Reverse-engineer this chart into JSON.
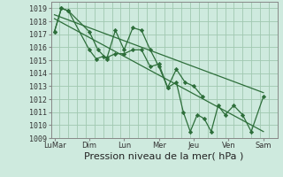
{
  "background_color": "#ceeade",
  "grid_color": "#a0c8b0",
  "line_color": "#2d6e3a",
  "marker_color": "#2d6e3a",
  "xlabel": "Pression niveau de la mer( hPa )",
  "xlabel_fontsize": 8,
  "ylim": [
    1009,
    1019.5
  ],
  "yticks": [
    1009,
    1010,
    1011,
    1012,
    1013,
    1014,
    1015,
    1016,
    1017,
    1018,
    1019
  ],
  "xtick_labels": [
    "LuMar",
    "Dim",
    "Lun",
    "Mer",
    "Jeu",
    "Ven",
    "Sam"
  ],
  "xtick_positions": [
    0,
    2,
    4,
    6,
    8,
    10,
    12
  ],
  "series1_x": [
    0.0,
    0.4,
    0.8,
    2.0,
    2.5,
    3.0,
    3.5,
    4.0,
    4.5,
    5.0,
    5.5,
    6.0,
    6.5,
    7.0,
    7.5,
    8.0,
    8.5
  ],
  "series1_y": [
    1017.2,
    1019.0,
    1018.8,
    1017.2,
    1015.8,
    1015.1,
    1017.3,
    1015.8,
    1017.5,
    1017.3,
    1015.8,
    1014.5,
    1012.9,
    1014.3,
    1013.3,
    1013.0,
    1012.2
  ],
  "series2_x": [
    0.0,
    0.4,
    0.8,
    2.0,
    2.4,
    2.8,
    3.0,
    3.5,
    4.0,
    4.5,
    5.0,
    5.5,
    6.0,
    6.5,
    7.0,
    7.4,
    7.8,
    8.2,
    8.6,
    9.0,
    9.4,
    9.8,
    10.3,
    10.8,
    11.3,
    12.0
  ],
  "series2_y": [
    1017.2,
    1019.0,
    1018.8,
    1015.8,
    1015.1,
    1015.3,
    1015.2,
    1015.5,
    1015.5,
    1015.8,
    1015.8,
    1014.5,
    1014.7,
    1012.9,
    1013.3,
    1011.0,
    1009.5,
    1010.8,
    1010.5,
    1009.5,
    1011.5,
    1010.8,
    1011.5,
    1010.8,
    1009.5,
    1012.2
  ],
  "trend1_x": [
    0.0,
    12.0
  ],
  "trend1_y": [
    1018.5,
    1012.5
  ],
  "trend2_x": [
    0.0,
    12.0
  ],
  "trend2_y": [
    1018.2,
    1009.5
  ]
}
